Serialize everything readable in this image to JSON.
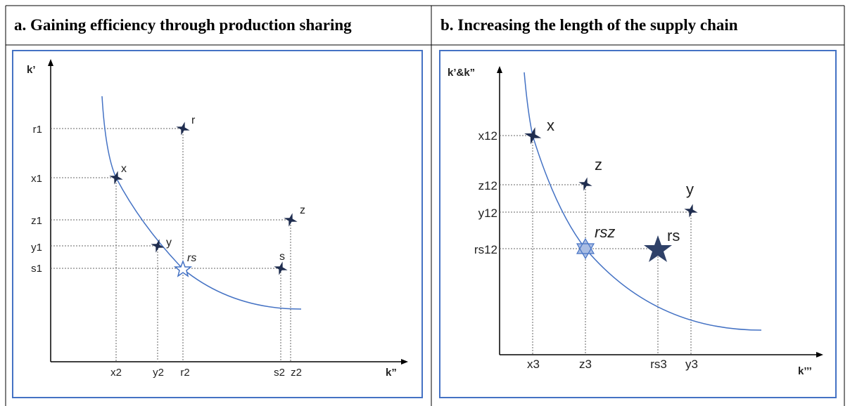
{
  "header": {
    "columns": [
      "a. Gaining efficiency through production sharing",
      "b. Increasing the length of the supply chain"
    ]
  },
  "panel_a": {
    "y_axis_label": "k’",
    "x_axis_label": "k”",
    "y_ticks": [
      "r1",
      "x1",
      "z1",
      "y1",
      "s1"
    ],
    "x_ticks": [
      "x2",
      "y2",
      "r2",
      "s2",
      "z2"
    ],
    "points": [
      "r",
      "x",
      "z",
      "y",
      "rs",
      "s"
    ]
  },
  "panel_b": {
    "y_axis_label": "k’&k”",
    "x_axis_label": "k’’’",
    "y_ticks": [
      "x12",
      "z12",
      "y12",
      "rs12"
    ],
    "x_ticks": [
      "x3",
      "z3",
      "rs3",
      "y3"
    ],
    "points": [
      "x",
      "z",
      "y",
      "rsz",
      "rs"
    ]
  }
}
